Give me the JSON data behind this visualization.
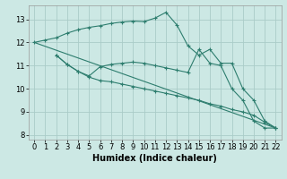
{
  "xlabel": "Humidex (Indice chaleur)",
  "bg_color": "#cce8e4",
  "grid_color": "#aaccc8",
  "line_color": "#2d7d6e",
  "xlim": [
    -0.5,
    22.5
  ],
  "ylim": [
    7.8,
    13.6
  ],
  "yticks": [
    8,
    9,
    10,
    11,
    12,
    13
  ],
  "xticks": [
    0,
    1,
    2,
    3,
    4,
    5,
    6,
    7,
    8,
    9,
    10,
    11,
    12,
    13,
    14,
    15,
    16,
    17,
    18,
    19,
    20,
    21,
    22
  ],
  "line1_x": [
    0,
    1,
    2,
    3,
    4,
    5,
    6,
    7,
    8,
    9,
    10,
    11,
    12,
    13,
    14,
    15,
    16,
    17,
    18,
    19,
    20,
    21,
    22
  ],
  "line1_y": [
    12.0,
    12.1,
    12.2,
    12.4,
    12.55,
    12.65,
    12.72,
    12.82,
    12.88,
    12.92,
    12.9,
    13.05,
    13.3,
    12.75,
    11.85,
    11.45,
    11.7,
    11.1,
    11.1,
    10.0,
    9.5,
    8.6,
    8.3
  ],
  "line2_x": [
    2,
    3,
    4,
    5,
    6,
    7,
    8,
    9,
    10,
    11,
    12,
    13,
    14,
    15,
    16,
    17,
    18,
    19,
    20,
    21,
    22
  ],
  "line2_y": [
    11.45,
    11.05,
    10.75,
    10.55,
    10.95,
    11.05,
    11.1,
    11.15,
    11.1,
    11.0,
    10.9,
    10.8,
    10.7,
    11.7,
    11.1,
    11.0,
    10.0,
    9.5,
    8.6,
    8.3,
    8.3
  ],
  "line3_x": [
    2,
    3,
    4,
    5,
    6,
    7,
    8,
    9,
    10,
    11,
    12,
    13,
    14,
    15,
    16,
    17,
    18,
    19,
    20,
    21,
    22
  ],
  "line3_y": [
    11.45,
    11.05,
    10.75,
    10.5,
    10.35,
    10.3,
    10.2,
    10.1,
    10.0,
    9.9,
    9.8,
    9.7,
    9.6,
    9.5,
    9.35,
    9.25,
    9.1,
    9.0,
    8.85,
    8.55,
    8.3
  ],
  "line4_x": [
    0,
    22
  ],
  "line4_y": [
    12.0,
    8.3
  ]
}
